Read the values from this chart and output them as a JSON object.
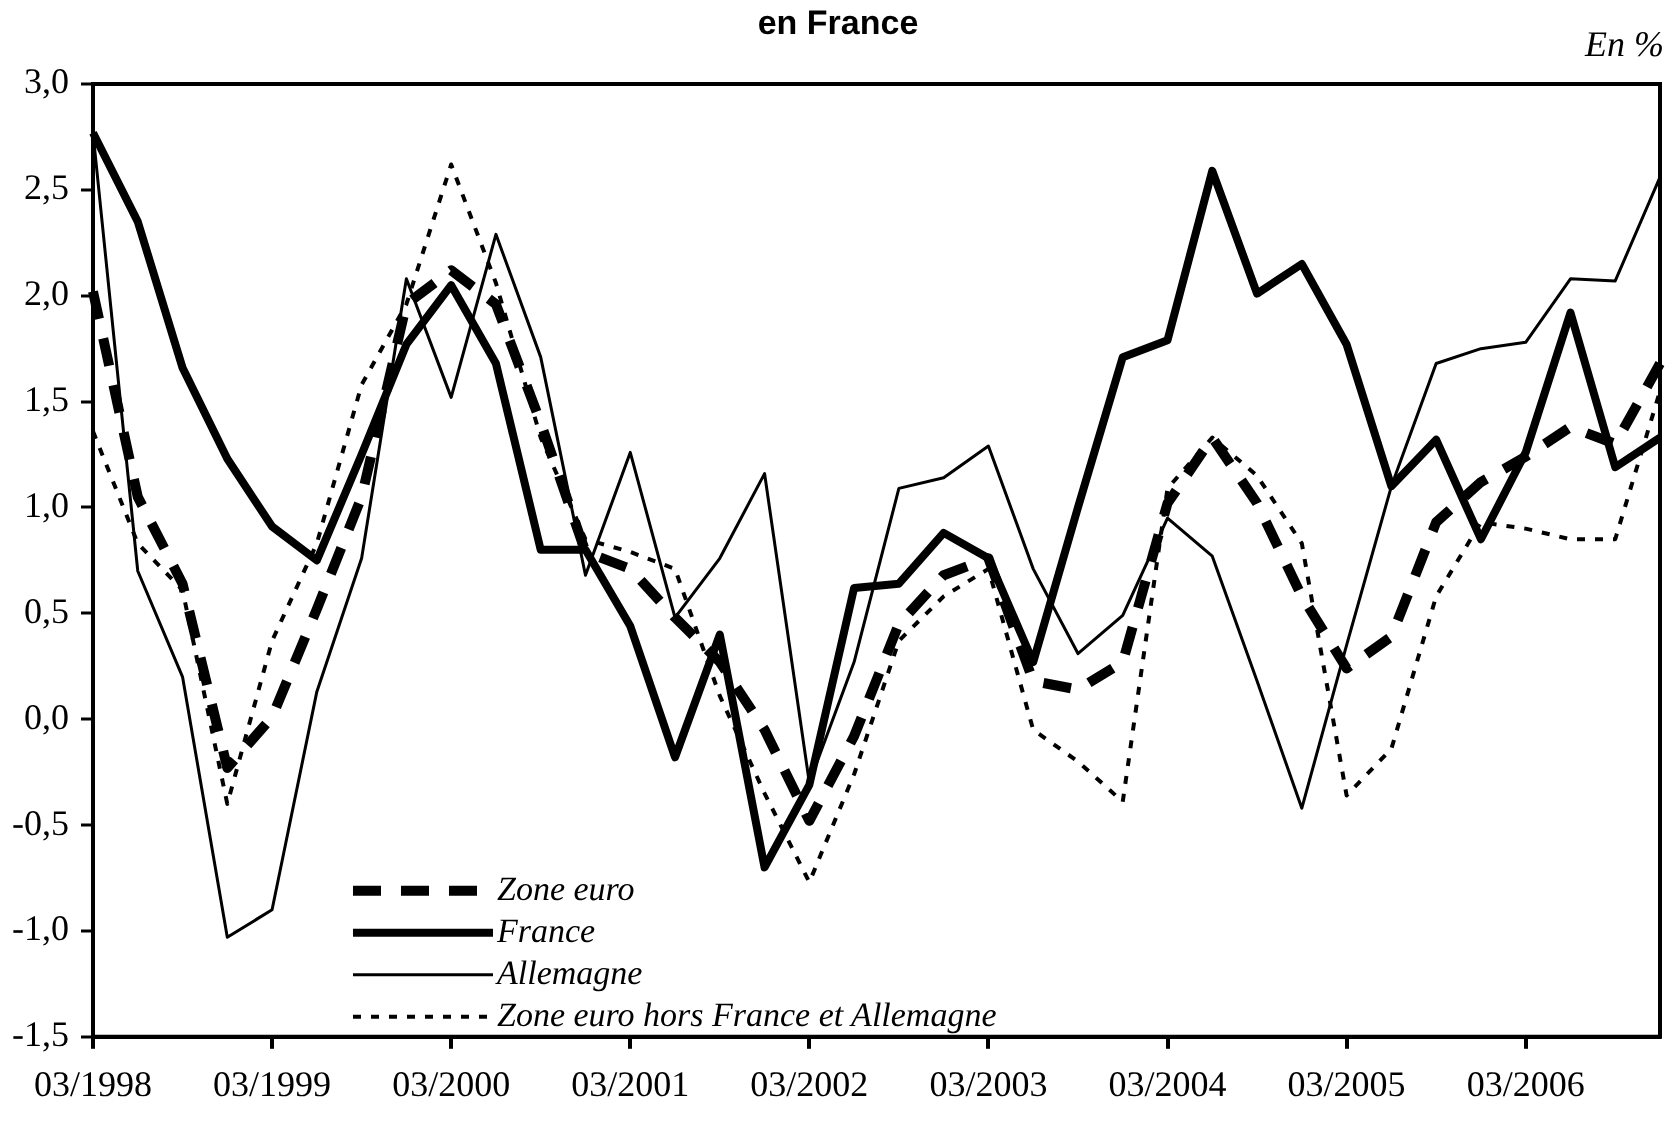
{
  "chart_data": {
    "type": "line",
    "title": "en France",
    "annotations": [
      "En %"
    ],
    "categories": [
      "03/1998",
      null,
      null,
      null,
      "03/1999",
      null,
      null,
      null,
      "03/2000",
      null,
      null,
      null,
      "03/2001",
      null,
      null,
      null,
      "03/2002",
      null,
      null,
      null,
      "03/2003",
      null,
      null,
      null,
      "03/2004",
      null,
      null,
      null,
      "03/2005",
      null,
      null,
      null,
      "03/2006",
      null,
      null,
      null
    ],
    "series": [
      {
        "name": "Zone euro",
        "color": "#000000",
        "line_style": "dashed",
        "values": [
          2.02,
          1.05,
          0.64,
          -0.23,
          0.01,
          0.52,
          1.05,
          1.96,
          2.12,
          1.96,
          1.4,
          0.79,
          0.71,
          0.48,
          0.27,
          -0.05,
          -0.48,
          -0.08,
          0.45,
          0.68,
          0.76,
          0.18,
          0.14,
          0.27,
          1.02,
          1.33,
          1.02,
          0.58,
          0.24,
          0.39,
          0.93,
          1.12,
          1.24,
          1.38,
          1.3,
          1.68
        ]
      },
      {
        "name": "France",
        "color": "#000000",
        "line_style": "solid",
        "values": [
          2.77,
          2.35,
          1.66,
          1.23,
          0.91,
          0.75,
          1.25,
          1.77,
          2.05,
          1.68,
          0.8,
          0.8,
          0.44,
          -0.18,
          0.4,
          -0.7,
          -0.31,
          0.62,
          0.64,
          0.88,
          0.76,
          0.27,
          1.0,
          1.71,
          1.79,
          2.59,
          2.01,
          2.15,
          1.77,
          1.1,
          1.32,
          0.85,
          1.26,
          1.92,
          1.19,
          1.33
        ]
      },
      {
        "name": "Allemagne",
        "color": "#000000",
        "line_style": "solid",
        "values": [
          2.77,
          0.7,
          0.2,
          -1.03,
          -0.9,
          0.13,
          0.76,
          2.08,
          1.52,
          2.29,
          1.71,
          0.68,
          1.26,
          0.48,
          0.76,
          1.16,
          -0.3,
          0.27,
          1.09,
          1.14,
          1.29,
          0.71,
          0.31,
          0.49,
          0.95,
          0.77,
          0.18,
          -0.42,
          0.35,
          1.1,
          1.68,
          1.75,
          1.78,
          2.08,
          2.07,
          2.56
        ]
      },
      {
        "name": "Zone euro hors France et Allemagne",
        "color": "#000000",
        "line_style": "dotted",
        "values": [
          1.36,
          0.83,
          0.61,
          -0.4,
          0.37,
          0.83,
          1.58,
          1.96,
          2.62,
          2.06,
          1.33,
          0.85,
          0.79,
          0.71,
          0.11,
          -0.35,
          -0.77,
          -0.26,
          0.37,
          0.58,
          0.71,
          -0.05,
          -0.2,
          -0.39,
          1.09,
          1.33,
          1.15,
          0.83,
          -0.36,
          -0.14,
          0.58,
          0.93,
          0.9,
          0.85,
          0.85,
          1.55
        ]
      }
    ],
    "ylim": [
      -1.5,
      3.0
    ],
    "yticks": [
      {
        "value": -1.5,
        "label": "-1,5"
      },
      {
        "value": -1.0,
        "label": "-1,0"
      },
      {
        "value": -0.5,
        "label": "-0,5"
      },
      {
        "value": 0,
        "label": "0,0"
      },
      {
        "value": 0.5,
        "label": "0,5"
      },
      {
        "value": 1.0,
        "label": "1,0"
      },
      {
        "value": 1.5,
        "label": "1,5"
      },
      {
        "value": 2.0,
        "label": "2,0"
      },
      {
        "value": 2.5,
        "label": "2,5"
      },
      {
        "value": 3.0,
        "label": "3,0"
      }
    ],
    "grid": false,
    "legend": "bottom left",
    "marker": "none"
  }
}
